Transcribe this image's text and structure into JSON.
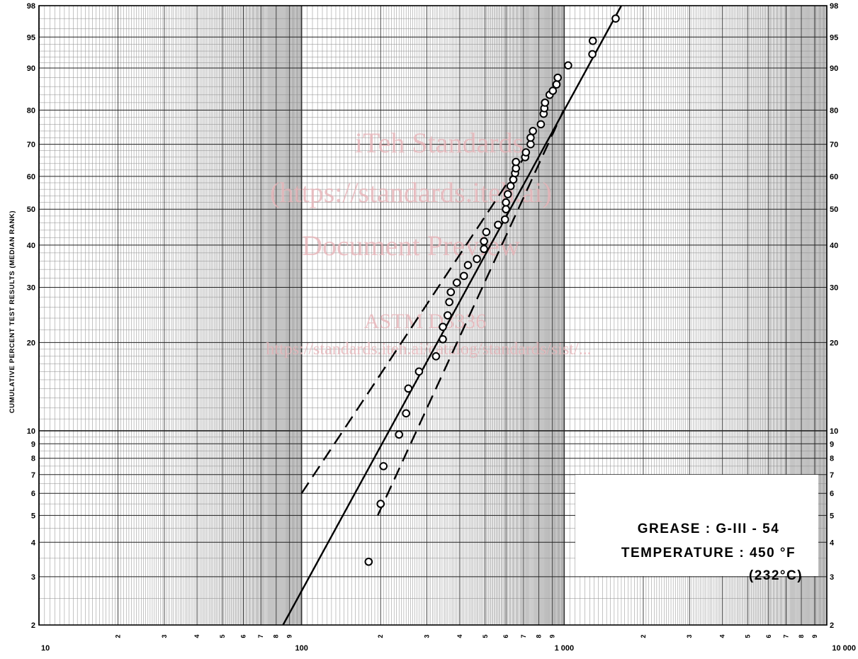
{
  "chart_data": {
    "type": "scatter",
    "title": "",
    "xlabel": "",
    "ylabel": "CUMULATIVE PERCENT TEST RESULTS (MEDIAN RANK)",
    "x_scale": "log",
    "y_scale": "weibull-probability",
    "xlim": [
      10,
      10000
    ],
    "ylim": [
      2,
      98
    ],
    "grid": true,
    "x_major_tick_labels": [
      "10",
      "100",
      "1 000",
      "10 000"
    ],
    "x_minor_tick_labels": [
      "2",
      "3",
      "4",
      "5",
      "6",
      "7",
      "8",
      "9"
    ],
    "y_tick_labels": [
      "2",
      "3",
      "4",
      "5",
      "6",
      "7",
      "8",
      "9",
      "10",
      "20",
      "30",
      "40",
      "50",
      "60",
      "70",
      "80",
      "90",
      "95",
      "98"
    ],
    "y_tick_values": [
      2,
      3,
      4,
      5,
      6,
      7,
      8,
      9,
      10,
      20,
      30,
      40,
      50,
      60,
      70,
      80,
      90,
      95,
      98
    ],
    "legend": {
      "placement": "bottom-right",
      "lines": [
        "GREASE : G-III - 54",
        "TEMPERATURE : 450 °F",
        "(232°C)"
      ]
    },
    "watermark": [
      "iTeh Standards",
      "(https://standards.iteh.ai)",
      "Document Preview",
      "ASTM D3336",
      "https://standards.iteh.ai/catalog/standards/sist/..."
    ],
    "series": [
      {
        "marker": "circle",
        "points": [
          {
            "x": 180,
            "y": 3.4
          },
          {
            "x": 200,
            "y": 5.5
          },
          {
            "x": 205,
            "y": 7.5
          },
          {
            "x": 235,
            "y": 9.7
          },
          {
            "x": 250,
            "y": 11.5
          },
          {
            "x": 255,
            "y": 14
          },
          {
            "x": 280,
            "y": 16
          },
          {
            "x": 325,
            "y": 18
          },
          {
            "x": 345,
            "y": 20.5
          },
          {
            "x": 345,
            "y": 22.5
          },
          {
            "x": 360,
            "y": 24.5
          },
          {
            "x": 365,
            "y": 27
          },
          {
            "x": 370,
            "y": 29
          },
          {
            "x": 390,
            "y": 31
          },
          {
            "x": 415,
            "y": 32.5
          },
          {
            "x": 430,
            "y": 35
          },
          {
            "x": 465,
            "y": 36.5
          },
          {
            "x": 495,
            "y": 39
          },
          {
            "x": 495,
            "y": 41
          },
          {
            "x": 505,
            "y": 43.5
          },
          {
            "x": 560,
            "y": 45.5
          },
          {
            "x": 595,
            "y": 47
          },
          {
            "x": 600,
            "y": 50
          },
          {
            "x": 600,
            "y": 52
          },
          {
            "x": 610,
            "y": 54.5
          },
          {
            "x": 625,
            "y": 57
          },
          {
            "x": 640,
            "y": 59
          },
          {
            "x": 650,
            "y": 61
          },
          {
            "x": 655,
            "y": 62.5
          },
          {
            "x": 655,
            "y": 64.5
          },
          {
            "x": 710,
            "y": 66
          },
          {
            "x": 715,
            "y": 67.5
          },
          {
            "x": 745,
            "y": 70
          },
          {
            "x": 745,
            "y": 72
          },
          {
            "x": 760,
            "y": 74
          },
          {
            "x": 815,
            "y": 76
          },
          {
            "x": 835,
            "y": 79
          },
          {
            "x": 840,
            "y": 80.5
          },
          {
            "x": 845,
            "y": 82
          },
          {
            "x": 880,
            "y": 84
          },
          {
            "x": 905,
            "y": 85
          },
          {
            "x": 935,
            "y": 86.5
          },
          {
            "x": 945,
            "y": 88
          },
          {
            "x": 1035,
            "y": 90.5
          },
          {
            "x": 1280,
            "y": 92.5
          },
          {
            "x": 1285,
            "y": 94.5
          },
          {
            "x": 1570,
            "y": 97
          }
        ]
      }
    ],
    "lines": [
      {
        "style": "solid",
        "points": [
          {
            "x": 85,
            "y": 2
          },
          {
            "x": 1650,
            "y": 98
          }
        ]
      },
      {
        "style": "dashed",
        "points": [
          {
            "x": 100,
            "y": 6
          },
          {
            "x": 760,
            "y": 70
          }
        ]
      },
      {
        "style": "dashed",
        "points": [
          {
            "x": 195,
            "y": 5
          },
          {
            "x": 995,
            "y": 80
          }
        ]
      }
    ]
  }
}
